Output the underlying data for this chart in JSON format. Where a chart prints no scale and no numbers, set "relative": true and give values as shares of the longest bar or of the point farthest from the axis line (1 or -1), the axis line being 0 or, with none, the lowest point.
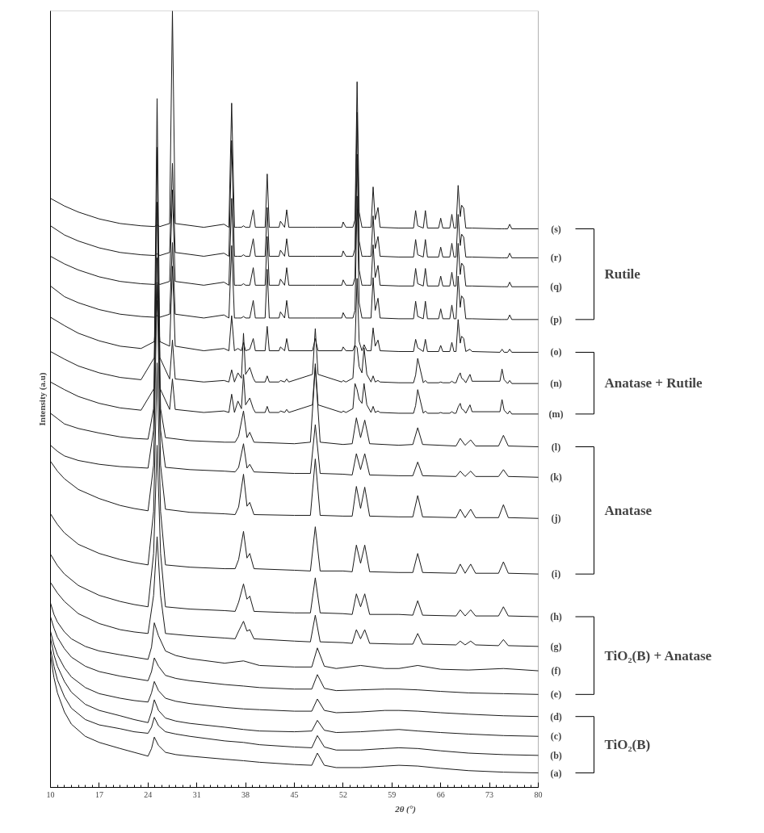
{
  "chart_data": {
    "type": "line",
    "relative": true,
    "tick_labels": "x",
    "grid": false,
    "xlabel": "2θ (°)",
    "ylabel": "Intensity (a.u)",
    "xlim": [
      10,
      80
    ],
    "xticks": [
      10,
      17,
      24,
      31,
      38,
      45,
      52,
      59,
      66,
      73,
      80
    ],
    "annotations": [
      "Rutile",
      "Anatase + Rutile",
      "Anatase",
      "TiO₂(B) + Anatase",
      "TiO₂(B)"
    ],
    "series": [
      {
        "name": "(s)",
        "color": "#1a1a1a",
        "x": [
          10,
          12,
          14,
          17,
          20,
          23,
          24.9,
          25.3,
          25.7,
          27.1,
          27.5,
          27.9,
          32,
          34.9,
          35.6,
          36.0,
          36.4,
          36.9,
          37.4,
          37.7,
          38.0,
          38.6,
          39.1,
          39.4,
          40.8,
          41.1,
          41.4,
          42.8,
          43.0,
          43.6,
          43.9,
          44.2,
          47.6,
          48.0,
          48.4,
          51.8,
          52.0,
          52.4,
          53.4,
          53.7,
          54.0,
          54.3,
          54.7,
          55.0,
          55.4,
          56.0,
          56.3,
          56.6,
          57.0,
          57.3,
          60,
          62.1,
          62.4,
          62.7,
          63.5,
          63.8,
          64.1,
          65.7,
          66.0,
          66.3,
          67.3,
          67.6,
          67.9,
          68.2,
          68.5,
          68.8,
          69.0,
          69.3,
          69.6,
          70.2,
          70.5,
          74.5,
          74.8,
          75.1,
          75.6,
          75.9,
          76.2,
          80
        ],
        "values": [
          0.754,
          0.744,
          0.736,
          0.727,
          0.721,
          0.718,
          0.717,
          0.719,
          0.717,
          0.721,
          1.0,
          0.721,
          0.716,
          0.72,
          0.716,
          0.879,
          0.716,
          0.716,
          0.716,
          0.718,
          0.716,
          0.716,
          0.739,
          0.716,
          0.716,
          0.786,
          0.716,
          0.716,
          0.724,
          0.716,
          0.739,
          0.716,
          0.716,
          0.716,
          0.716,
          0.716,
          0.723,
          0.716,
          0.716,
          0.726,
          0.907,
          0.736,
          0.716,
          0.716,
          0.716,
          0.716,
          0.769,
          0.726,
          0.742,
          0.716,
          0.715,
          0.715,
          0.738,
          0.718,
          0.715,
          0.738,
          0.715,
          0.715,
          0.728,
          0.715,
          0.715,
          0.733,
          0.715,
          0.715,
          0.771,
          0.73,
          0.745,
          0.741,
          0.715,
          0.715,
          0.715,
          0.714,
          0.714,
          0.714,
          0.714,
          0.72,
          0.714,
          0.714
        ]
      },
      {
        "name": "(r)",
        "color": "#1a1a1a",
        "x": [
          10,
          12,
          14,
          17,
          20,
          23,
          24.9,
          25.3,
          25.7,
          27.1,
          27.5,
          27.9,
          32,
          34.9,
          35.6,
          36.0,
          36.4,
          36.9,
          37.4,
          37.7,
          38.0,
          38.6,
          39.1,
          39.4,
          40.8,
          41.1,
          41.4,
          42.8,
          43.0,
          43.6,
          43.9,
          44.2,
          47.6,
          48.0,
          48.4,
          51.8,
          52.0,
          52.4,
          53.4,
          53.7,
          54.0,
          54.3,
          54.7,
          55.0,
          55.4,
          56.0,
          56.3,
          56.6,
          57.0,
          57.3,
          60,
          62.1,
          62.4,
          62.7,
          63.5,
          63.8,
          64.1,
          65.7,
          66.0,
          66.3,
          67.3,
          67.6,
          67.9,
          68.2,
          68.5,
          68.8,
          69.0,
          69.3,
          69.6,
          70.2,
          70.5,
          74.5,
          74.8,
          75.1,
          75.6,
          75.9,
          76.2,
          80
        ],
        "values": [
          0.718,
          0.706,
          0.698,
          0.689,
          0.683,
          0.68,
          0.679,
          0.681,
          0.679,
          0.683,
          0.8,
          0.683,
          0.678,
          0.682,
          0.678,
          0.83,
          0.678,
          0.678,
          0.678,
          0.68,
          0.678,
          0.678,
          0.701,
          0.678,
          0.678,
          0.742,
          0.678,
          0.678,
          0.686,
          0.678,
          0.701,
          0.678,
          0.678,
          0.678,
          0.678,
          0.678,
          0.685,
          0.678,
          0.678,
          0.688,
          0.867,
          0.698,
          0.678,
          0.678,
          0.678,
          0.678,
          0.731,
          0.688,
          0.704,
          0.678,
          0.677,
          0.677,
          0.7,
          0.68,
          0.677,
          0.7,
          0.677,
          0.677,
          0.69,
          0.677,
          0.677,
          0.695,
          0.677,
          0.677,
          0.733,
          0.692,
          0.707,
          0.703,
          0.677,
          0.677,
          0.677,
          0.676,
          0.676,
          0.676,
          0.676,
          0.682,
          0.676,
          0.676
        ]
      },
      {
        "name": "(q)",
        "color": "#1a1a1a",
        "x": [
          10,
          12,
          14,
          17,
          20,
          23,
          24.9,
          25.3,
          25.7,
          27.1,
          27.5,
          27.9,
          32,
          34.9,
          35.6,
          36.0,
          36.4,
          36.9,
          37.4,
          37.7,
          38.0,
          38.6,
          39.1,
          39.4,
          40.8,
          41.1,
          41.4,
          42.8,
          43.0,
          43.6,
          43.9,
          44.2,
          47.6,
          48.0,
          48.4,
          51.8,
          52.0,
          52.4,
          53.4,
          53.7,
          54.0,
          54.3,
          54.7,
          55.0,
          55.4,
          56.0,
          56.3,
          56.6,
          57.0,
          57.3,
          60,
          62.1,
          62.4,
          62.7,
          63.5,
          63.8,
          64.1,
          65.7,
          66.0,
          66.3,
          67.3,
          67.6,
          67.9,
          68.2,
          68.5,
          68.8,
          69.0,
          69.3,
          69.6,
          70.2,
          70.5,
          74.5,
          74.8,
          75.1,
          75.6,
          75.9,
          76.2,
          80
        ],
        "values": [
          0.678,
          0.668,
          0.66,
          0.651,
          0.645,
          0.642,
          0.641,
          0.643,
          0.641,
          0.645,
          0.765,
          0.645,
          0.64,
          0.644,
          0.64,
          0.754,
          0.64,
          0.64,
          0.64,
          0.642,
          0.64,
          0.64,
          0.663,
          0.64,
          0.64,
          0.704,
          0.64,
          0.64,
          0.648,
          0.64,
          0.663,
          0.64,
          0.64,
          0.64,
          0.64,
          0.64,
          0.647,
          0.64,
          0.64,
          0.65,
          0.812,
          0.66,
          0.64,
          0.64,
          0.64,
          0.64,
          0.693,
          0.65,
          0.666,
          0.64,
          0.639,
          0.639,
          0.662,
          0.642,
          0.639,
          0.662,
          0.639,
          0.639,
          0.652,
          0.639,
          0.639,
          0.657,
          0.639,
          0.639,
          0.695,
          0.654,
          0.669,
          0.665,
          0.639,
          0.639,
          0.639,
          0.638,
          0.638,
          0.638,
          0.638,
          0.644,
          0.638,
          0.638
        ]
      },
      {
        "name": "(p)",
        "color": "#1a1a1a",
        "x": [
          10,
          12,
          14,
          17,
          20,
          23,
          24.9,
          25.3,
          25.7,
          27.1,
          27.5,
          27.9,
          32,
          34.9,
          35.6,
          36.0,
          36.4,
          36.9,
          37.4,
          37.7,
          38.0,
          38.6,
          39.1,
          39.4,
          40.8,
          41.1,
          41.4,
          42.8,
          43.0,
          43.6,
          43.9,
          44.2,
          47.6,
          48.0,
          48.4,
          51.8,
          52.0,
          52.4,
          53.4,
          53.7,
          54.0,
          54.3,
          54.7,
          55.0,
          55.4,
          56.0,
          56.3,
          56.6,
          57.0,
          57.3,
          60,
          62.1,
          62.4,
          62.7,
          63.5,
          63.8,
          64.1,
          65.7,
          66.0,
          66.3,
          67.3,
          67.6,
          67.9,
          68.2,
          68.5,
          68.8,
          69.0,
          69.3,
          69.6,
          70.2,
          70.5,
          74.5,
          74.8,
          75.1,
          75.6,
          75.9,
          76.2,
          80
        ],
        "values": [
          0.639,
          0.625,
          0.617,
          0.608,
          0.602,
          0.599,
          0.598,
          0.6,
          0.598,
          0.602,
          0.696,
          0.602,
          0.597,
          0.601,
          0.597,
          0.692,
          0.597,
          0.597,
          0.597,
          0.599,
          0.597,
          0.597,
          0.62,
          0.597,
          0.597,
          0.661,
          0.597,
          0.597,
          0.605,
          0.597,
          0.62,
          0.597,
          0.597,
          0.597,
          0.597,
          0.597,
          0.604,
          0.597,
          0.597,
          0.607,
          0.757,
          0.617,
          0.597,
          0.597,
          0.597,
          0.597,
          0.65,
          0.607,
          0.623,
          0.597,
          0.596,
          0.596,
          0.619,
          0.599,
          0.596,
          0.619,
          0.596,
          0.596,
          0.609,
          0.596,
          0.596,
          0.614,
          0.596,
          0.596,
          0.652,
          0.611,
          0.626,
          0.622,
          0.596,
          0.596,
          0.596,
          0.595,
          0.595,
          0.595,
          0.595,
          0.601,
          0.595,
          0.595
        ]
      },
      {
        "name": "(o)",
        "color": "#1a1a1a",
        "x": [
          10,
          12,
          14,
          17,
          20,
          23,
          24.9,
          25.3,
          25.7,
          27.1,
          27.5,
          27.9,
          32,
          34.9,
          35.6,
          36.0,
          36.4,
          36.9,
          37.4,
          37.7,
          38.0,
          38.6,
          39.1,
          39.4,
          40.8,
          41.1,
          41.4,
          42.8,
          43.0,
          43.6,
          43.9,
          44.2,
          47.6,
          48.0,
          48.4,
          51.8,
          52.0,
          52.4,
          53.4,
          53.7,
          54.0,
          54.3,
          54.7,
          55.0,
          55.4,
          56.0,
          56.3,
          56.6,
          57.0,
          57.3,
          60,
          62.1,
          62.4,
          62.7,
          63.5,
          63.8,
          64.1,
          65.7,
          66.0,
          66.3,
          67.3,
          67.6,
          67.9,
          68.2,
          68.5,
          68.8,
          69.0,
          69.3,
          69.6,
          70.2,
          70.5,
          74.5,
          74.8,
          75.1,
          75.6,
          75.9,
          76.2,
          80
        ],
        "values": [
          0.598,
          0.587,
          0.577,
          0.567,
          0.56,
          0.557,
          0.566,
          0.62,
          0.566,
          0.56,
          0.665,
          0.56,
          0.554,
          0.557,
          0.554,
          0.6,
          0.554,
          0.557,
          0.554,
          0.565,
          0.554,
          0.556,
          0.57,
          0.554,
          0.554,
          0.586,
          0.554,
          0.554,
          0.559,
          0.554,
          0.57,
          0.554,
          0.554,
          0.57,
          0.554,
          0.554,
          0.559,
          0.554,
          0.554,
          0.562,
          0.649,
          0.566,
          0.554,
          0.562,
          0.554,
          0.554,
          0.584,
          0.56,
          0.568,
          0.554,
          0.553,
          0.553,
          0.569,
          0.558,
          0.553,
          0.569,
          0.553,
          0.553,
          0.561,
          0.553,
          0.553,
          0.565,
          0.553,
          0.553,
          0.595,
          0.564,
          0.573,
          0.57,
          0.553,
          0.556,
          0.553,
          0.552,
          0.556,
          0.552,
          0.552,
          0.556,
          0.552,
          0.552
        ]
      },
      {
        "name": "(n)",
        "color": "#1a1a1a",
        "x": [
          10,
          12,
          14,
          17,
          20,
          23,
          24.9,
          25.3,
          25.7,
          27.1,
          27.5,
          27.9,
          32,
          34.9,
          35.6,
          36.0,
          36.4,
          36.9,
          37.4,
          37.7,
          38.0,
          38.6,
          39.1,
          39.4,
          40.8,
          41.1,
          41.4,
          42.8,
          43.0,
          43.6,
          43.9,
          44.2,
          47.6,
          48.0,
          48.4,
          51.8,
          52.0,
          52.4,
          53.4,
          53.7,
          54.0,
          54.3,
          54.7,
          55.0,
          55.4,
          56.0,
          56.3,
          56.6,
          57.0,
          57.3,
          60,
          62.1,
          62.4,
          62.7,
          63.5,
          63.8,
          64.1,
          65.7,
          66.0,
          66.3,
          67.3,
          67.6,
          67.9,
          68.2,
          68.5,
          68.8,
          69.0,
          69.3,
          69.6,
          70.2,
          70.5,
          74.5,
          74.8,
          75.1,
          75.6,
          75.9,
          76.2,
          80
        ],
        "values": [
          0.553,
          0.543,
          0.534,
          0.525,
          0.519,
          0.516,
          0.545,
          0.885,
          0.545,
          0.517,
          0.568,
          0.517,
          0.513,
          0.515,
          0.513,
          0.529,
          0.513,
          0.525,
          0.518,
          0.577,
          0.523,
          0.532,
          0.518,
          0.513,
          0.513,
          0.521,
          0.513,
          0.513,
          0.515,
          0.513,
          0.517,
          0.513,
          0.523,
          0.583,
          0.523,
          0.513,
          0.515,
          0.513,
          0.518,
          0.561,
          0.558,
          0.533,
          0.525,
          0.558,
          0.523,
          0.513,
          0.521,
          0.513,
          0.515,
          0.513,
          0.512,
          0.512,
          0.522,
          0.544,
          0.512,
          0.515,
          0.512,
          0.512,
          0.513,
          0.512,
          0.512,
          0.514,
          0.512,
          0.512,
          0.52,
          0.525,
          0.518,
          0.516,
          0.512,
          0.523,
          0.514,
          0.514,
          0.53,
          0.516,
          0.511,
          0.515,
          0.511,
          0.511
        ]
      },
      {
        "name": "(m)",
        "color": "#1a1a1a",
        "x": [
          10,
          12,
          14,
          17,
          20,
          23,
          24.9,
          25.3,
          25.7,
          27.1,
          27.5,
          27.9,
          32,
          34.9,
          35.6,
          36.0,
          36.4,
          36.9,
          37.4,
          37.7,
          38.0,
          38.6,
          39.1,
          39.4,
          40.8,
          41.1,
          41.4,
          42.8,
          43.0,
          43.6,
          43.9,
          44.2,
          47.6,
          48.0,
          48.4,
          51.8,
          52.0,
          52.4,
          53.4,
          53.7,
          54.0,
          54.3,
          54.7,
          55.0,
          55.4,
          56.0,
          56.3,
          56.6,
          57.0,
          57.3,
          60,
          62.1,
          62.4,
          62.7,
          63.5,
          63.8,
          64.1,
          65.7,
          66.0,
          66.3,
          67.3,
          67.6,
          67.9,
          68.2,
          68.5,
          68.8,
          69.0,
          69.3,
          69.6,
          70.2,
          70.5,
          74.5,
          74.8,
          75.1,
          75.6,
          75.9,
          76.2,
          80
        ],
        "values": [
          0.513,
          0.503,
          0.494,
          0.485,
          0.479,
          0.476,
          0.505,
          0.821,
          0.505,
          0.477,
          0.517,
          0.477,
          0.473,
          0.475,
          0.473,
          0.497,
          0.473,
          0.488,
          0.478,
          0.523,
          0.483,
          0.492,
          0.478,
          0.473,
          0.473,
          0.481,
          0.473,
          0.473,
          0.475,
          0.473,
          0.477,
          0.473,
          0.483,
          0.537,
          0.483,
          0.473,
          0.475,
          0.473,
          0.478,
          0.511,
          0.503,
          0.49,
          0.485,
          0.511,
          0.483,
          0.473,
          0.481,
          0.473,
          0.475,
          0.473,
          0.472,
          0.472,
          0.482,
          0.503,
          0.472,
          0.475,
          0.472,
          0.472,
          0.473,
          0.472,
          0.472,
          0.474,
          0.472,
          0.472,
          0.48,
          0.485,
          0.478,
          0.476,
          0.472,
          0.483,
          0.474,
          0.474,
          0.49,
          0.476,
          0.471,
          0.475,
          0.471,
          0.471
        ]
      },
      {
        "name": "(l)",
        "color": "#1a1a1a",
        "x": [
          10,
          11,
          12,
          14,
          17,
          20,
          22,
          24,
          24.8,
          25.3,
          25.8,
          26.5,
          30,
          35,
          36.5,
          37.0,
          37.7,
          38.2,
          38.6,
          39.2,
          45,
          47.3,
          48.0,
          48.7,
          52,
          53.3,
          53.9,
          54.5,
          55.1,
          55.8,
          60,
          62.0,
          62.7,
          63.4,
          68.2,
          68.8,
          69.5,
          70.3,
          71,
          74.3,
          75.0,
          75.7,
          80
        ],
        "values": [
          0.472,
          0.465,
          0.458,
          0.452,
          0.446,
          0.441,
          0.439,
          0.438,
          0.478,
          0.749,
          0.478,
          0.44,
          0.436,
          0.434,
          0.434,
          0.442,
          0.475,
          0.44,
          0.447,
          0.434,
          0.432,
          0.434,
          0.532,
          0.434,
          0.431,
          0.432,
          0.466,
          0.44,
          0.463,
          0.432,
          0.43,
          0.431,
          0.453,
          0.431,
          0.429,
          0.439,
          0.43,
          0.437,
          0.429,
          0.429,
          0.443,
          0.429,
          0.428
        ]
      },
      {
        "name": "(k)",
        "color": "#1a1a1a",
        "x": [
          10,
          11,
          12,
          14,
          17,
          20,
          22,
          24,
          24.8,
          25.3,
          25.8,
          26.5,
          30,
          35,
          36.5,
          37.0,
          37.7,
          38.2,
          38.6,
          39.2,
          45,
          47.3,
          48.0,
          48.7,
          52,
          53.3,
          53.9,
          54.5,
          55.1,
          55.8,
          60,
          62.0,
          62.7,
          63.4,
          68.2,
          68.8,
          69.5,
          70.3,
          71,
          74.3,
          75.0,
          75.7,
          80
        ],
        "values": [
          0.43,
          0.422,
          0.416,
          0.41,
          0.405,
          0.402,
          0.401,
          0.4,
          0.45,
          0.676,
          0.45,
          0.401,
          0.398,
          0.396,
          0.395,
          0.401,
          0.432,
          0.4,
          0.405,
          0.395,
          0.393,
          0.393,
          0.457,
          0.393,
          0.392,
          0.391,
          0.419,
          0.398,
          0.419,
          0.391,
          0.39,
          0.39,
          0.408,
          0.39,
          0.389,
          0.396,
          0.389,
          0.396,
          0.389,
          0.389,
          0.398,
          0.389,
          0.388
        ]
      },
      {
        "name": "(j)",
        "color": "#1a1a1a",
        "x": [
          10,
          11,
          12,
          14,
          17,
          20,
          22,
          24,
          24.8,
          25.3,
          25.8,
          26.5,
          30,
          35,
          36.5,
          37.0,
          37.7,
          38.2,
          38.6,
          39.2,
          45,
          47.3,
          48.0,
          48.7,
          52,
          53.3,
          53.9,
          54.5,
          55.1,
          55.8,
          60,
          62.0,
          62.7,
          63.4,
          68.2,
          68.8,
          69.5,
          70.3,
          71,
          74.3,
          75.0,
          75.7,
          80
        ],
        "values": [
          0.409,
          0.396,
          0.386,
          0.372,
          0.36,
          0.351,
          0.347,
          0.344,
          0.404,
          0.641,
          0.404,
          0.346,
          0.342,
          0.34,
          0.339,
          0.349,
          0.392,
          0.35,
          0.355,
          0.339,
          0.338,
          0.338,
          0.412,
          0.338,
          0.337,
          0.337,
          0.376,
          0.347,
          0.375,
          0.337,
          0.336,
          0.336,
          0.364,
          0.336,
          0.335,
          0.346,
          0.335,
          0.346,
          0.335,
          0.335,
          0.352,
          0.335,
          0.334
        ]
      },
      {
        "name": "(i)",
        "color": "#1a1a1a",
        "x": [
          10,
          11,
          12,
          14,
          17,
          20,
          22,
          24,
          24.8,
          25.3,
          25.8,
          26.5,
          30,
          35,
          36.5,
          37.0,
          37.7,
          38.2,
          38.6,
          39.2,
          45,
          47.3,
          48.0,
          48.7,
          52,
          53.3,
          53.9,
          54.5,
          55.1,
          55.8,
          60,
          62.0,
          62.7,
          63.4,
          68.2,
          68.8,
          69.5,
          70.3,
          71,
          74.3,
          75.0,
          75.7,
          80
        ],
        "values": [
          0.34,
          0.326,
          0.315,
          0.3,
          0.288,
          0.28,
          0.276,
          0.273,
          0.343,
          0.538,
          0.343,
          0.273,
          0.27,
          0.268,
          0.268,
          0.28,
          0.317,
          0.282,
          0.288,
          0.268,
          0.266,
          0.265,
          0.323,
          0.265,
          0.265,
          0.264,
          0.299,
          0.275,
          0.299,
          0.264,
          0.263,
          0.263,
          0.288,
          0.263,
          0.262,
          0.274,
          0.262,
          0.274,
          0.262,
          0.262,
          0.277,
          0.262,
          0.261
        ]
      },
      {
        "name": "(h)",
        "color": "#1a1a1a",
        "x": [
          10,
          11,
          12,
          14,
          17,
          20,
          22,
          24,
          24.8,
          25.3,
          25.8,
          26.5,
          30,
          35,
          36.5,
          37.0,
          37.7,
          38.2,
          38.6,
          39.2,
          45,
          47.3,
          48.0,
          48.7,
          52,
          53.3,
          53.9,
          54.5,
          55.1,
          55.8,
          60,
          62.0,
          62.7,
          63.4,
          68.2,
          68.8,
          69.5,
          70.3,
          71,
          74.3,
          75.0,
          75.7,
          80
        ],
        "values": [
          0.287,
          0.272,
          0.261,
          0.246,
          0.233,
          0.225,
          0.221,
          0.218,
          0.288,
          0.43,
          0.288,
          0.218,
          0.215,
          0.213,
          0.212,
          0.224,
          0.248,
          0.228,
          0.232,
          0.212,
          0.21,
          0.21,
          0.256,
          0.21,
          0.209,
          0.208,
          0.235,
          0.218,
          0.235,
          0.208,
          0.208,
          0.207,
          0.226,
          0.207,
          0.206,
          0.214,
          0.206,
          0.214,
          0.206,
          0.206,
          0.218,
          0.206,
          0.205
        ]
      },
      {
        "name": "(g)",
        "color": "#1a1a1a",
        "x": [
          10,
          11,
          12,
          14,
          17,
          20,
          22,
          24,
          24.8,
          25.3,
          25.8,
          26.5,
          30,
          35,
          36.5,
          37.0,
          37.7,
          38.2,
          38.6,
          39.2,
          45,
          47.3,
          48.0,
          48.7,
          52,
          53.3,
          53.9,
          54.5,
          55.1,
          55.8,
          60,
          62.0,
          62.7,
          63.4,
          68.2,
          68.8,
          69.5,
          70.3,
          71,
          74.3,
          75.0,
          75.7,
          80
        ],
        "values": [
          0.25,
          0.236,
          0.225,
          0.209,
          0.196,
          0.188,
          0.185,
          0.183,
          0.233,
          0.31,
          0.233,
          0.183,
          0.18,
          0.177,
          0.176,
          0.186,
          0.199,
          0.186,
          0.188,
          0.176,
          0.173,
          0.172,
          0.207,
          0.172,
          0.171,
          0.17,
          0.188,
          0.176,
          0.188,
          0.17,
          0.169,
          0.169,
          0.183,
          0.169,
          0.168,
          0.173,
          0.168,
          0.173,
          0.168,
          0.167,
          0.175,
          0.167,
          0.166
        ]
      },
      {
        "name": "(f)",
        "color": "#1a1a1a",
        "x": [
          10,
          10.5,
          11,
          12,
          13,
          15,
          17,
          20,
          22,
          24,
          24.5,
          24.9,
          25.5,
          26.5,
          28,
          30,
          35,
          37.7,
          40,
          45,
          47.5,
          48.3,
          49.3,
          51,
          54.5,
          58,
          60,
          62.7,
          66,
          70,
          75,
          80
        ],
        "values": [
          0.223,
          0.208,
          0.198,
          0.185,
          0.176,
          0.166,
          0.16,
          0.155,
          0.152,
          0.149,
          0.165,
          0.197,
          0.18,
          0.16,
          0.154,
          0.15,
          0.144,
          0.147,
          0.141,
          0.139,
          0.139,
          0.164,
          0.14,
          0.137,
          0.141,
          0.137,
          0.137,
          0.141,
          0.136,
          0.135,
          0.137,
          0.134
        ]
      },
      {
        "name": "(e)",
        "color": "#1a1a1a",
        "x": [
          10,
          10.5,
          11,
          12,
          13,
          15,
          17,
          20,
          22,
          24,
          24.5,
          24.9,
          25.5,
          26.5,
          28,
          30,
          35,
          37.7,
          40,
          45,
          47.5,
          48.3,
          49.3,
          51,
          54.5,
          58,
          60,
          62.7,
          66,
          70,
          75,
          80
        ],
        "values": [
          0.205,
          0.19,
          0.178,
          0.163,
          0.152,
          0.14,
          0.133,
          0.127,
          0.124,
          0.121,
          0.133,
          0.151,
          0.14,
          0.128,
          0.124,
          0.121,
          0.116,
          0.114,
          0.112,
          0.11,
          0.11,
          0.129,
          0.111,
          0.108,
          0.109,
          0.11,
          0.11,
          0.109,
          0.107,
          0.105,
          0.104,
          0.103
        ]
      },
      {
        "name": "(d)",
        "color": "#1a1a1a",
        "x": [
          10,
          10.5,
          11,
          12,
          13,
          15,
          17,
          20,
          22,
          24,
          24.5,
          24.9,
          25.5,
          26.5,
          28,
          30,
          35,
          37.7,
          40,
          45,
          47.5,
          48.3,
          49.3,
          51,
          54.5,
          58,
          60,
          62.7,
          66,
          70,
          75,
          80
        ],
        "values": [
          0.186,
          0.168,
          0.155,
          0.138,
          0.126,
          0.112,
          0.104,
          0.098,
          0.095,
          0.093,
          0.105,
          0.12,
          0.108,
          0.098,
          0.094,
          0.091,
          0.086,
          0.084,
          0.083,
          0.081,
          0.081,
          0.097,
          0.082,
          0.079,
          0.08,
          0.082,
          0.082,
          0.081,
          0.079,
          0.077,
          0.075,
          0.074
        ]
      },
      {
        "name": "(c)",
        "color": "#1a1a1a",
        "x": [
          10,
          10.5,
          11,
          12,
          13,
          15,
          17,
          20,
          22,
          24,
          24.5,
          24.9,
          25.5,
          26.5,
          28,
          30,
          35,
          37.7,
          40,
          45,
          47.5,
          48.3,
          49.3,
          51,
          54.5,
          58,
          60,
          62.7,
          66,
          70,
          75,
          80
        ],
        "values": [
          0.177,
          0.155,
          0.14,
          0.12,
          0.106,
          0.09,
          0.082,
          0.075,
          0.07,
          0.066,
          0.08,
          0.096,
          0.082,
          0.072,
          0.068,
          0.065,
          0.06,
          0.057,
          0.055,
          0.054,
          0.055,
          0.069,
          0.056,
          0.053,
          0.054,
          0.056,
          0.057,
          0.055,
          0.053,
          0.051,
          0.049,
          0.048
        ]
      },
      {
        "name": "(b)",
        "color": "#1a1a1a",
        "x": [
          10,
          10.5,
          11,
          12,
          13,
          15,
          17,
          20,
          22,
          24,
          24.5,
          24.9,
          25.5,
          26.5,
          28,
          30,
          35,
          37.7,
          40,
          45,
          47.5,
          48.3,
          49.3,
          51,
          54.5,
          58,
          60,
          62.7,
          66,
          70,
          75,
          80
        ],
        "values": [
          0.163,
          0.14,
          0.122,
          0.1,
          0.085,
          0.07,
          0.063,
          0.058,
          0.054,
          0.052,
          0.06,
          0.073,
          0.062,
          0.054,
          0.051,
          0.048,
          0.042,
          0.04,
          0.037,
          0.034,
          0.033,
          0.049,
          0.034,
          0.03,
          0.03,
          0.032,
          0.033,
          0.032,
          0.029,
          0.026,
          0.024,
          0.023
        ]
      },
      {
        "name": "(a)",
        "color": "#1a1a1a",
        "x": [
          10,
          10.5,
          11,
          12,
          13,
          15,
          17,
          20,
          22,
          24,
          24.5,
          24.9,
          25.5,
          26.5,
          28,
          30,
          35,
          37.7,
          40,
          45,
          47.5,
          48.3,
          49.3,
          51,
          54.5,
          58,
          60,
          62.7,
          66,
          70,
          75,
          80
        ],
        "values": [
          0.154,
          0.125,
          0.105,
          0.08,
          0.064,
          0.048,
          0.04,
          0.032,
          0.027,
          0.022,
          0.032,
          0.047,
          0.036,
          0.027,
          0.024,
          0.022,
          0.018,
          0.016,
          0.014,
          0.011,
          0.01,
          0.026,
          0.01,
          0.007,
          0.007,
          0.009,
          0.01,
          0.009,
          0.006,
          0.003,
          0.001,
          0.0
        ]
      }
    ]
  }
}
